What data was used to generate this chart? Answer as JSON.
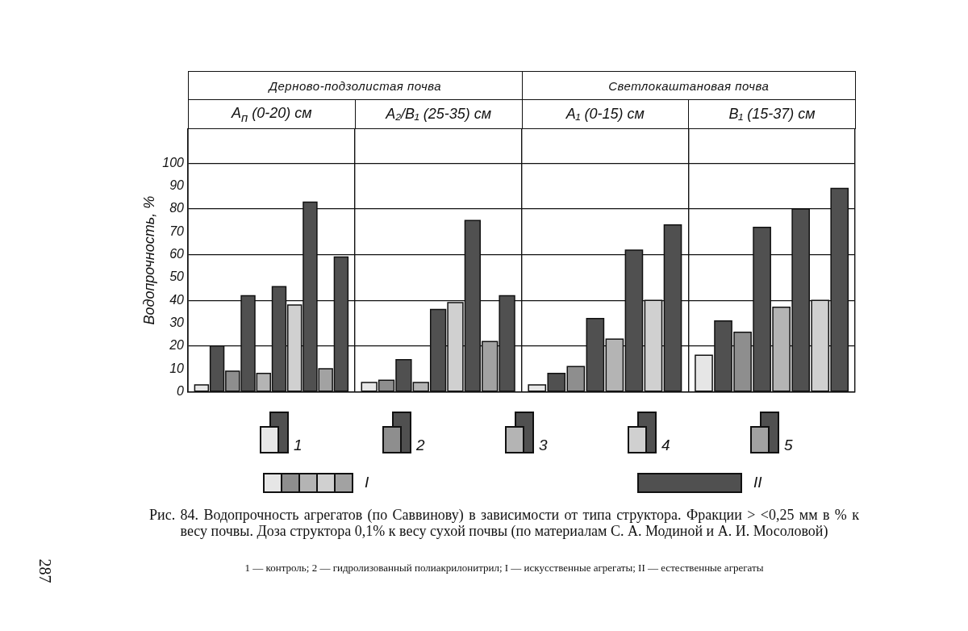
{
  "chart_data": {
    "type": "bar",
    "title": "Рис. 84. Водопрочность агрегатов (по Саввинову) в зависимости от типа структора. Фракции > <0,25 мм в % к весу почвы. Доза структора 0,1% к весу сухой почвы (по материалам С. А. Модиной и А. И. Мосоловой)",
    "ylabel": "Водопрочность, %",
    "annotations": [
      "Дерново-подзолистая почва",
      "Светлокаштановая почва",
      "I",
      "II",
      "1 — контроль; 2 — гидролизованный полиакрилонитрил; I — искусственные агрегаты; II — естественные агрегаты",
      "287"
    ],
    "categories": [
      "A$_{п}$ (0-20) см",
      "A₂/B₁ (25-35) см",
      "A₁ (0-15) см",
      "B₁ (15-37) см"
    ],
    "series": [
      {
        "name": "1",
        "color": "#e6e6e6",
        "values": [
          3,
          4,
          3,
          16
        ]
      },
      {
        "color": "#505050",
        "values": [
          20,
          null,
          8,
          31
        ]
      },
      {
        "name": "2",
        "color": "#8e8e8e",
        "values": [
          9,
          5,
          11,
          26
        ]
      },
      {
        "color": "#505050",
        "values": [
          42,
          14,
          32,
          72
        ]
      },
      {
        "name": "3",
        "color": "#b4b4b4",
        "values": [
          8,
          4,
          23,
          37
        ]
      },
      {
        "color": "#505050",
        "values": [
          46,
          36,
          62,
          80
        ]
      },
      {
        "name": "4",
        "color": "#d0d0d0",
        "values": [
          38,
          39,
          40,
          40
        ]
      },
      {
        "color": "#505050",
        "values": [
          83,
          75,
          73,
          89
        ]
      },
      {
        "name": "5",
        "color": "#a2a2a2",
        "values": [
          10,
          22,
          null,
          null
        ]
      },
      {
        "color": "#505050",
        "values": [
          59,
          42,
          null,
          null
        ]
      }
    ],
    "ylim": [
      0,
      115
    ],
    "yticks": [
      0,
      10,
      20,
      30,
      40,
      50,
      60,
      70,
      80,
      90,
      100
    ],
    "grid": true,
    "legend": "bottom"
  }
}
